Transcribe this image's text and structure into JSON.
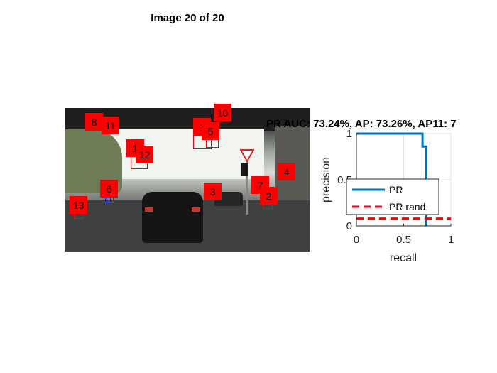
{
  "figure": {
    "title": "Image 20 of 20"
  },
  "detections": [
    {
      "label": "8"
    },
    {
      "label": "11"
    },
    {
      "label": "10"
    },
    {
      "label": "1"
    },
    {
      "label": "5"
    },
    {
      "label": "1"
    },
    {
      "label": "12"
    },
    {
      "label": "4"
    },
    {
      "label": "6"
    },
    {
      "label": "3"
    },
    {
      "label": "7"
    },
    {
      "label": "2"
    },
    {
      "label": "13"
    }
  ],
  "chart_data": {
    "type": "line",
    "title": "PR AUC: 73.24%, AP: 73.26%, AP11: 7",
    "xlabel": "recall",
    "ylabel": "precision",
    "xlim": [
      0,
      1
    ],
    "ylim": [
      0,
      1
    ],
    "x_ticks": [
      "0",
      "0.5",
      "1"
    ],
    "y_ticks": [
      "0",
      "0.5",
      "1"
    ],
    "grid": true,
    "legend_position": "middle",
    "series": [
      {
        "name": "PR",
        "color": "#0072bd",
        "style": "solid",
        "points": [
          [
            0,
            1
          ],
          [
            0.7,
            1
          ],
          [
            0.7,
            0.86
          ],
          [
            0.74,
            0.86
          ],
          [
            0.74,
            0
          ]
        ]
      },
      {
        "name": "PR rand.",
        "color": "#ff0000",
        "style": "dashed",
        "points": [
          [
            0,
            0.08
          ],
          [
            1,
            0.08
          ]
        ]
      }
    ]
  }
}
